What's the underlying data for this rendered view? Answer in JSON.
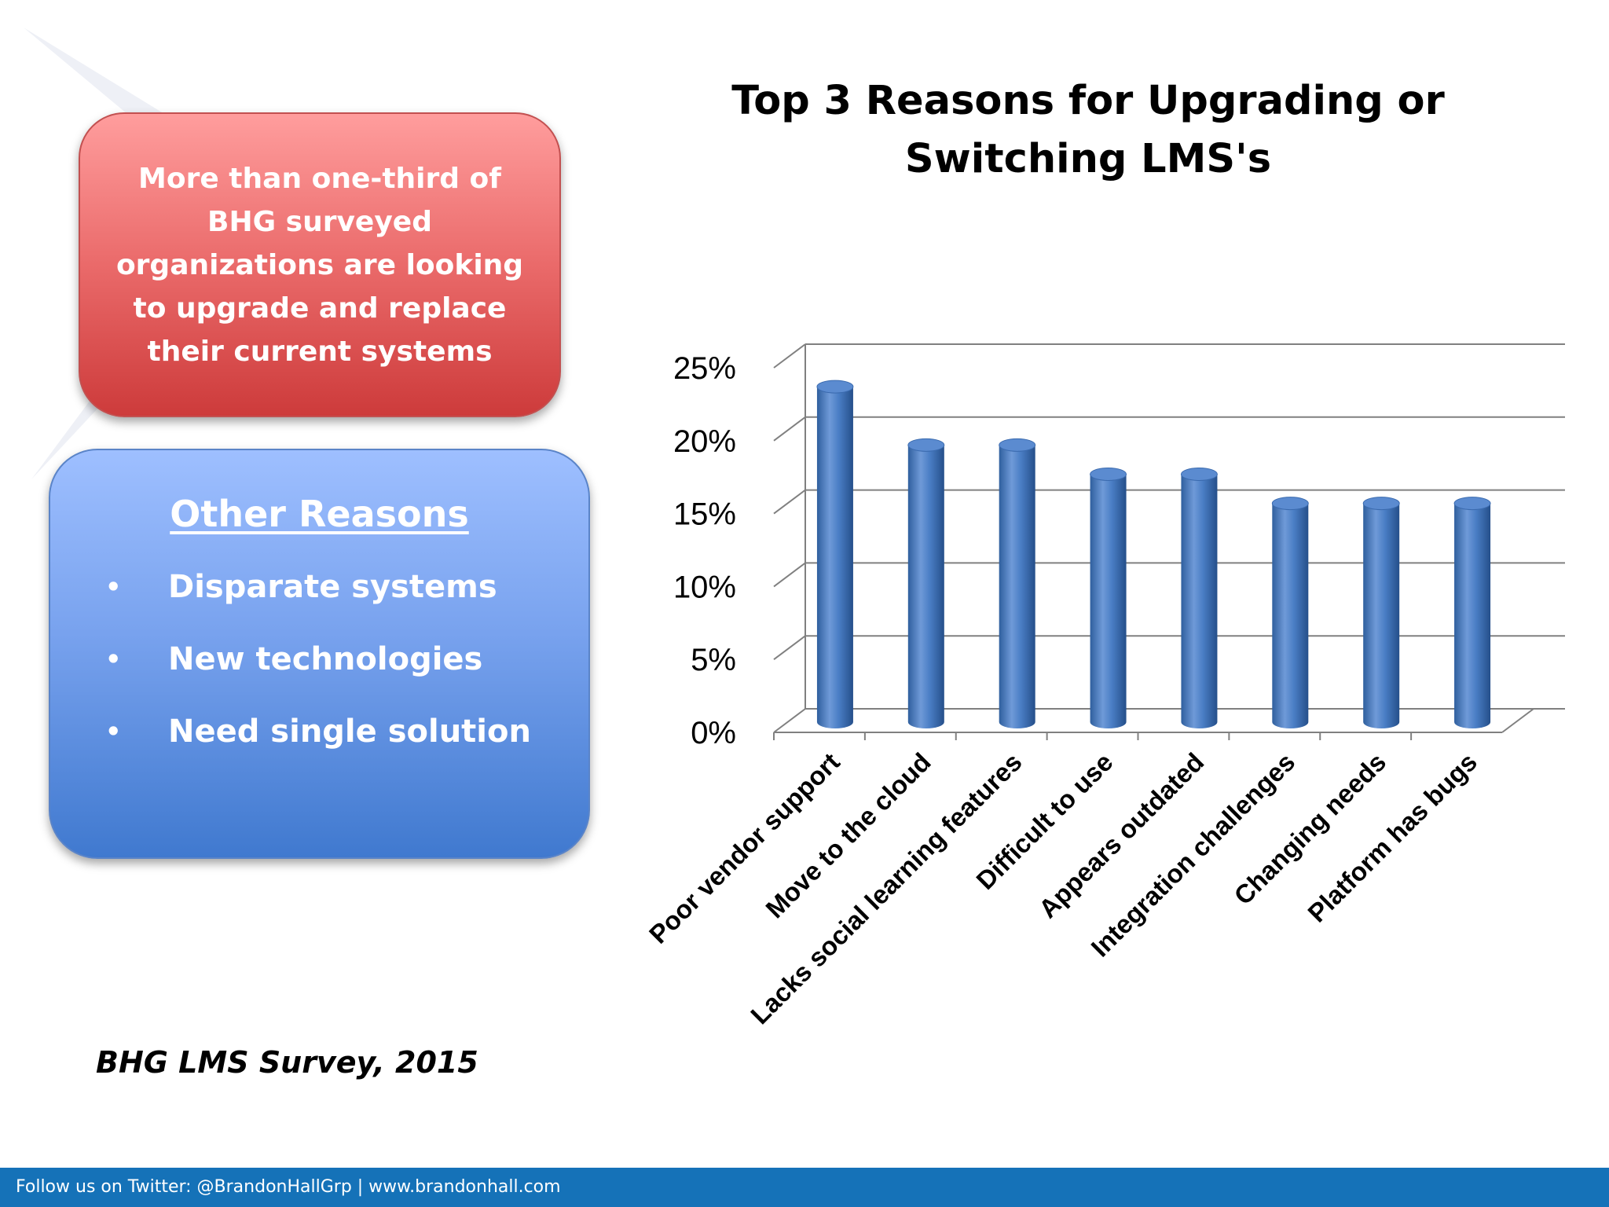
{
  "callout": {
    "text": "More than one-third of BHG surveyed organizations are looking to upgrade and replace their current systems",
    "color": "#d04040"
  },
  "other_reasons": {
    "title": "Other Reasons",
    "items": [
      "Disparate systems",
      "New technologies",
      "Need  single solution"
    ],
    "bullet": "•"
  },
  "source": "BHG LMS Survey, 2015",
  "footer": {
    "text": "Follow us on Twitter: @BrandonHallGrp | www.brandonhall.com",
    "color": "#1572b8"
  },
  "chart_data": {
    "type": "bar",
    "title": "Top 3 Reasons for Upgrading or Switching LMS's",
    "categories": [
      "Poor vendor support",
      "Move to the cloud",
      "Lacks social learning features",
      "Difficult to use",
      "Appears outdated",
      "Integration challenges",
      "Changing needs",
      "Platform has bugs"
    ],
    "values": [
      23,
      19,
      19,
      17,
      17,
      15,
      15,
      15
    ],
    "value_format": "percent",
    "ylim": [
      0,
      25
    ],
    "yticks": [
      "0%",
      "5%",
      "10%",
      "15%",
      "20%",
      "25%"
    ],
    "grid": true,
    "legend": "none",
    "bar_color": "#4a7ec5",
    "style": "3d-cylinder"
  }
}
